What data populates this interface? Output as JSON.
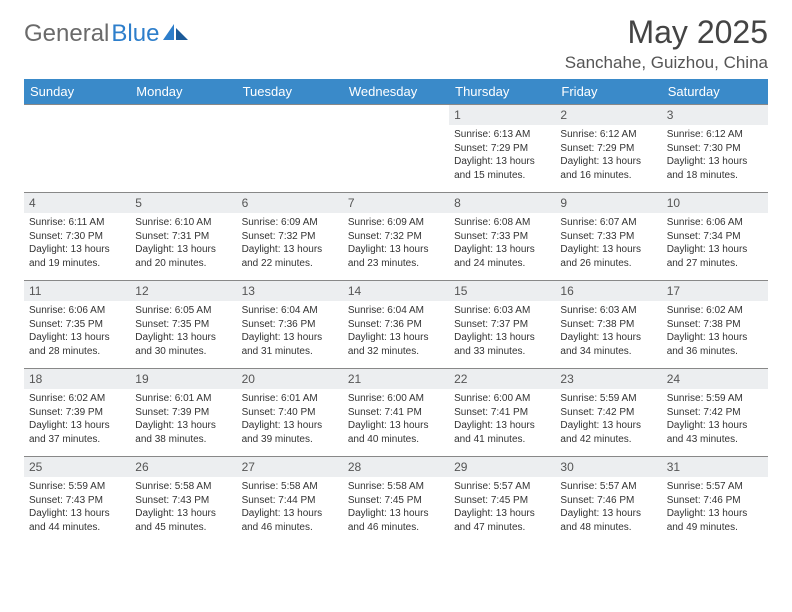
{
  "logo": {
    "brand_a": "General",
    "brand_b": "Blue"
  },
  "title": "May 2025",
  "location": "Sanchahe, Guizhou, China",
  "header_bg": "#3a8ac9",
  "daynum_bg": "#eceef0",
  "days": [
    "Sunday",
    "Monday",
    "Tuesday",
    "Wednesday",
    "Thursday",
    "Friday",
    "Saturday"
  ],
  "weeks": [
    [
      null,
      null,
      null,
      null,
      {
        "n": "1",
        "sr": "6:13 AM",
        "ss": "7:29 PM",
        "dl": "13 hours and 15 minutes."
      },
      {
        "n": "2",
        "sr": "6:12 AM",
        "ss": "7:29 PM",
        "dl": "13 hours and 16 minutes."
      },
      {
        "n": "3",
        "sr": "6:12 AM",
        "ss": "7:30 PM",
        "dl": "13 hours and 18 minutes."
      }
    ],
    [
      {
        "n": "4",
        "sr": "6:11 AM",
        "ss": "7:30 PM",
        "dl": "13 hours and 19 minutes."
      },
      {
        "n": "5",
        "sr": "6:10 AM",
        "ss": "7:31 PM",
        "dl": "13 hours and 20 minutes."
      },
      {
        "n": "6",
        "sr": "6:09 AM",
        "ss": "7:32 PM",
        "dl": "13 hours and 22 minutes."
      },
      {
        "n": "7",
        "sr": "6:09 AM",
        "ss": "7:32 PM",
        "dl": "13 hours and 23 minutes."
      },
      {
        "n": "8",
        "sr": "6:08 AM",
        "ss": "7:33 PM",
        "dl": "13 hours and 24 minutes."
      },
      {
        "n": "9",
        "sr": "6:07 AM",
        "ss": "7:33 PM",
        "dl": "13 hours and 26 minutes."
      },
      {
        "n": "10",
        "sr": "6:06 AM",
        "ss": "7:34 PM",
        "dl": "13 hours and 27 minutes."
      }
    ],
    [
      {
        "n": "11",
        "sr": "6:06 AM",
        "ss": "7:35 PM",
        "dl": "13 hours and 28 minutes."
      },
      {
        "n": "12",
        "sr": "6:05 AM",
        "ss": "7:35 PM",
        "dl": "13 hours and 30 minutes."
      },
      {
        "n": "13",
        "sr": "6:04 AM",
        "ss": "7:36 PM",
        "dl": "13 hours and 31 minutes."
      },
      {
        "n": "14",
        "sr": "6:04 AM",
        "ss": "7:36 PM",
        "dl": "13 hours and 32 minutes."
      },
      {
        "n": "15",
        "sr": "6:03 AM",
        "ss": "7:37 PM",
        "dl": "13 hours and 33 minutes."
      },
      {
        "n": "16",
        "sr": "6:03 AM",
        "ss": "7:38 PM",
        "dl": "13 hours and 34 minutes."
      },
      {
        "n": "17",
        "sr": "6:02 AM",
        "ss": "7:38 PM",
        "dl": "13 hours and 36 minutes."
      }
    ],
    [
      {
        "n": "18",
        "sr": "6:02 AM",
        "ss": "7:39 PM",
        "dl": "13 hours and 37 minutes."
      },
      {
        "n": "19",
        "sr": "6:01 AM",
        "ss": "7:39 PM",
        "dl": "13 hours and 38 minutes."
      },
      {
        "n": "20",
        "sr": "6:01 AM",
        "ss": "7:40 PM",
        "dl": "13 hours and 39 minutes."
      },
      {
        "n": "21",
        "sr": "6:00 AM",
        "ss": "7:41 PM",
        "dl": "13 hours and 40 minutes."
      },
      {
        "n": "22",
        "sr": "6:00 AM",
        "ss": "7:41 PM",
        "dl": "13 hours and 41 minutes."
      },
      {
        "n": "23",
        "sr": "5:59 AM",
        "ss": "7:42 PM",
        "dl": "13 hours and 42 minutes."
      },
      {
        "n": "24",
        "sr": "5:59 AM",
        "ss": "7:42 PM",
        "dl": "13 hours and 43 minutes."
      }
    ],
    [
      {
        "n": "25",
        "sr": "5:59 AM",
        "ss": "7:43 PM",
        "dl": "13 hours and 44 minutes."
      },
      {
        "n": "26",
        "sr": "5:58 AM",
        "ss": "7:43 PM",
        "dl": "13 hours and 45 minutes."
      },
      {
        "n": "27",
        "sr": "5:58 AM",
        "ss": "7:44 PM",
        "dl": "13 hours and 46 minutes."
      },
      {
        "n": "28",
        "sr": "5:58 AM",
        "ss": "7:45 PM",
        "dl": "13 hours and 46 minutes."
      },
      {
        "n": "29",
        "sr": "5:57 AM",
        "ss": "7:45 PM",
        "dl": "13 hours and 47 minutes."
      },
      {
        "n": "30",
        "sr": "5:57 AM",
        "ss": "7:46 PM",
        "dl": "13 hours and 48 minutes."
      },
      {
        "n": "31",
        "sr": "5:57 AM",
        "ss": "7:46 PM",
        "dl": "13 hours and 49 minutes."
      }
    ]
  ]
}
